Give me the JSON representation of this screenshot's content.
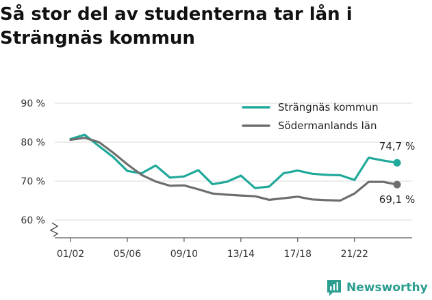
{
  "title": "Så stor del av studenterna tar lån i Strängnäs kommun",
  "brand": {
    "name": "Newsworthy",
    "icon": "newsworthy-logo-icon",
    "color": "#2a9d8f"
  },
  "chart_data": {
    "type": "line",
    "title": "Så stor del av studenterna tar lån i Strängnäs kommun",
    "x": [
      "01/02",
      "02/03",
      "03/04",
      "04/05",
      "05/06",
      "06/07",
      "07/08",
      "08/09",
      "09/10",
      "10/11",
      "11/12",
      "12/13",
      "13/14",
      "14/15",
      "15/16",
      "16/17",
      "17/18",
      "18/19",
      "19/20",
      "20/21",
      "21/22",
      "22/23",
      "23/24",
      "24/25"
    ],
    "x_tick_labels": [
      "01/02",
      "05/06",
      "09/10",
      "13/14",
      "17/18",
      "21/22"
    ],
    "y_ticks": [
      60,
      70,
      80,
      90
    ],
    "y_tick_labels": [
      "60 %",
      "70 %",
      "80 %",
      "90 %"
    ],
    "ylim": [
      55,
      92
    ],
    "y_axis_break": true,
    "grid": true,
    "legend_position": "top-right",
    "series": [
      {
        "name": "Strängnäs kommun",
        "color": "#1fa99a",
        "values": [
          80.8,
          81.9,
          79.0,
          76.2,
          72.6,
          72.0,
          74.0,
          70.9,
          71.2,
          72.8,
          69.2,
          69.8,
          71.4,
          68.2,
          68.6,
          72.0,
          72.7,
          71.9,
          71.6,
          71.5,
          70.3,
          76.0,
          75.3,
          74.7
        ],
        "end_label": "74,7 %"
      },
      {
        "name": "Södermanlands län",
        "color": "#6e6e6e",
        "values": [
          80.6,
          81.1,
          80.0,
          77.3,
          74.3,
          71.6,
          69.9,
          68.8,
          68.9,
          67.9,
          66.8,
          66.5,
          66.3,
          66.1,
          65.2,
          65.6,
          66.0,
          65.3,
          65.1,
          65.0,
          66.8,
          69.8,
          69.8,
          69.1
        ],
        "end_label": "69,1 %"
      }
    ]
  }
}
